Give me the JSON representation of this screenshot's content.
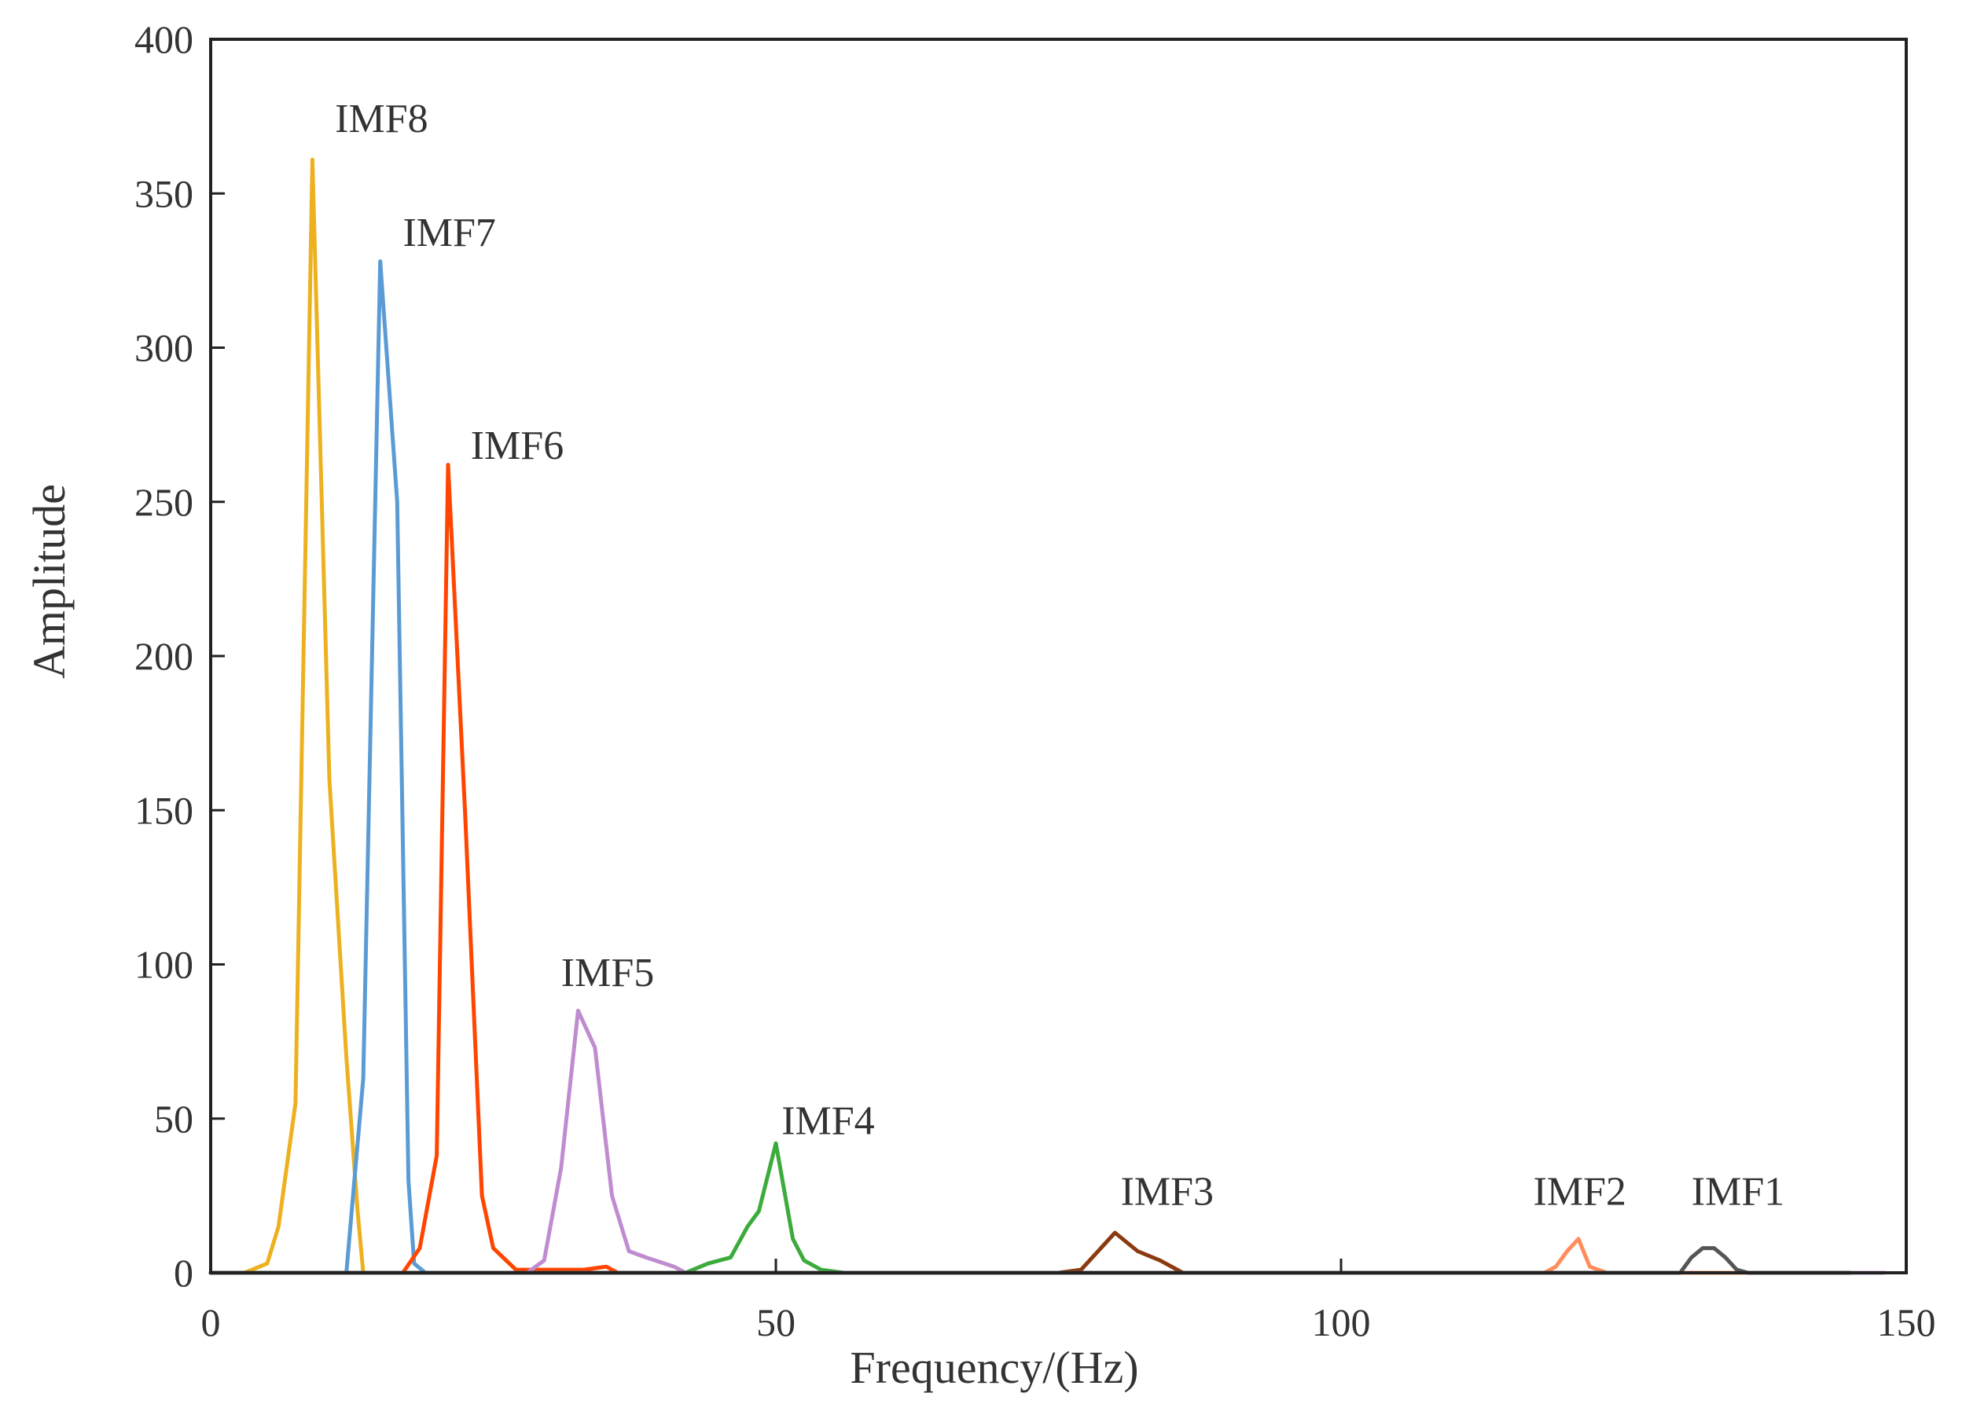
{
  "chart_data": {
    "type": "line",
    "xlabel": "Frequency/(Hz)",
    "ylabel": "Amplitude",
    "xlim": [
      0,
      150
    ],
    "ylim": [
      0,
      400
    ],
    "xticks": [
      0,
      50,
      100,
      150
    ],
    "yticks": [
      0,
      50,
      100,
      150,
      200,
      250,
      300,
      350,
      400
    ],
    "grid": false,
    "legend": "none",
    "series": [
      {
        "name": "IMF8",
        "color": "#EDB120",
        "points": [
          [
            0,
            0
          ],
          [
            3,
            0
          ],
          [
            5,
            3
          ],
          [
            6,
            15
          ],
          [
            7.5,
            55
          ],
          [
            9,
            361
          ],
          [
            10.5,
            160
          ],
          [
            12,
            70
          ],
          [
            13,
            20
          ],
          [
            13.5,
            0
          ],
          [
            20,
            0
          ],
          [
            30,
            0
          ],
          [
            40,
            0
          ],
          [
            50,
            0
          ]
        ],
        "label_at": [
          11,
          370
        ]
      },
      {
        "name": "IMF7",
        "color": "#5B9BD5",
        "points": [
          [
            3,
            0
          ],
          [
            12,
            0
          ],
          [
            13.5,
            63
          ],
          [
            15,
            328
          ],
          [
            16.5,
            250
          ],
          [
            17.5,
            30
          ],
          [
            18,
            3
          ],
          [
            19,
            0
          ],
          [
            40,
            0
          ],
          [
            80,
            0
          ],
          [
            120,
            0
          ],
          [
            145,
            0
          ]
        ],
        "label_at": [
          17,
          333
        ]
      },
      {
        "name": "IMF6",
        "color": "#FF4500",
        "points": [
          [
            0,
            0
          ],
          [
            7,
            0
          ],
          [
            17,
            0
          ],
          [
            18.5,
            8
          ],
          [
            20,
            38
          ],
          [
            21,
            262
          ],
          [
            22.5,
            150
          ],
          [
            24,
            25
          ],
          [
            25,
            8
          ],
          [
            27,
            1
          ],
          [
            33,
            1
          ],
          [
            35,
            2
          ],
          [
            36,
            0
          ],
          [
            60,
            0
          ],
          [
            100,
            0
          ],
          [
            148,
            0
          ]
        ],
        "label_at": [
          23,
          264
        ]
      },
      {
        "name": "IMF5",
        "color": "#C08CD0",
        "points": [
          [
            3,
            0
          ],
          [
            28,
            0
          ],
          [
            29.5,
            4
          ],
          [
            31,
            34
          ],
          [
            32.5,
            85
          ],
          [
            34,
            73
          ],
          [
            35.5,
            25
          ],
          [
            37,
            7
          ],
          [
            38.5,
            5
          ],
          [
            41,
            2
          ],
          [
            42,
            0
          ],
          [
            60,
            0
          ],
          [
            100,
            0
          ],
          [
            148,
            0
          ]
        ],
        "label_at": [
          31,
          93
        ]
      },
      {
        "name": "IMF4",
        "color": "#3CAB3C",
        "points": [
          [
            3,
            0
          ],
          [
            42,
            0
          ],
          [
            44,
            3
          ],
          [
            46,
            5
          ],
          [
            47.5,
            15
          ],
          [
            48.5,
            20
          ],
          [
            50,
            42
          ],
          [
            51.5,
            11
          ],
          [
            52.5,
            4
          ],
          [
            54,
            1
          ],
          [
            56,
            0
          ],
          [
            100,
            0
          ],
          [
            145,
            0
          ]
        ],
        "label_at": [
          50.5,
          45
        ]
      },
      {
        "name": "IMF3",
        "color": "#8B3A0F",
        "points": [
          [
            0,
            0
          ],
          [
            75,
            0
          ],
          [
            77,
            1
          ],
          [
            80,
            13
          ],
          [
            82,
            7
          ],
          [
            84,
            4
          ],
          [
            86,
            0
          ],
          [
            120,
            0
          ],
          [
            145,
            0
          ]
        ],
        "label_at": [
          80.5,
          22
        ]
      },
      {
        "name": "IMF2",
        "color": "#FF8C5A",
        "points": [
          [
            0,
            0
          ],
          [
            118,
            0
          ],
          [
            119,
            2
          ],
          [
            120,
            7
          ],
          [
            121,
            11
          ],
          [
            122,
            2
          ],
          [
            123.5,
            0
          ],
          [
            145,
            0
          ]
        ],
        "label_at": [
          117,
          22
        ]
      },
      {
        "name": "IMF1",
        "color": "#555555",
        "points": [
          [
            0,
            0
          ],
          [
            130,
            0
          ],
          [
            131,
            5
          ],
          [
            132,
            8
          ],
          [
            133,
            8
          ],
          [
            134,
            5
          ],
          [
            135,
            1
          ],
          [
            136,
            0
          ],
          [
            145,
            0
          ]
        ],
        "label_at": [
          131,
          22
        ]
      }
    ]
  }
}
